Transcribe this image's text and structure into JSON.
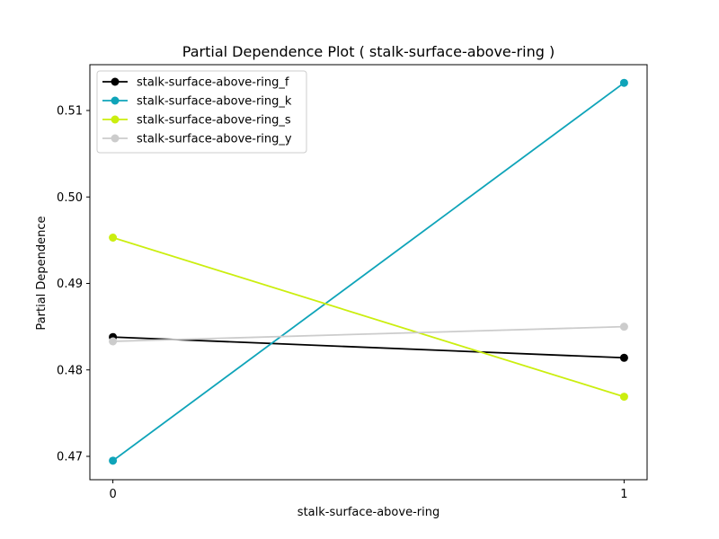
{
  "chart_data": {
    "type": "line",
    "title": "Partial Dependence Plot ( stalk-surface-above-ring )",
    "xlabel": "stalk-surface-above-ring",
    "ylabel": "Partial Dependence",
    "x": [
      0,
      1
    ],
    "x_tick_labels": [
      "0",
      "1"
    ],
    "xlim": [
      -0.045,
      1.045
    ],
    "ylim": [
      0.4673,
      0.5153
    ],
    "y_ticks": [
      0.47,
      0.48,
      0.49,
      0.5,
      0.51
    ],
    "y_tick_labels": [
      "0.47",
      "0.48",
      "0.49",
      "0.50",
      "0.51"
    ],
    "grid": false,
    "legend_position": "upper-left",
    "series": [
      {
        "name": "stalk-surface-above-ring_f",
        "color": "#000000",
        "values": [
          0.4838,
          0.4814
        ]
      },
      {
        "name": "stalk-surface-above-ring_k",
        "color": "#0fa4b9",
        "values": [
          0.4695,
          0.5132
        ]
      },
      {
        "name": "stalk-surface-above-ring_s",
        "color": "#cbee0f",
        "values": [
          0.4953,
          0.4769
        ]
      },
      {
        "name": "stalk-surface-above-ring_y",
        "color": "#cccccc",
        "values": [
          0.4833,
          0.485
        ]
      }
    ]
  }
}
